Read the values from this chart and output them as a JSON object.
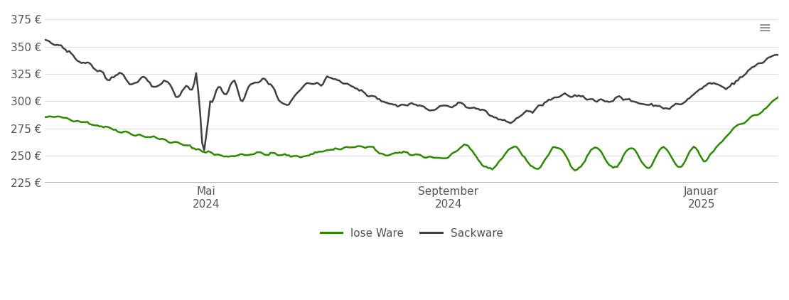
{
  "title": "",
  "ylabel": "",
  "xlabel": "",
  "background_color": "#ffffff",
  "grid_color": "#e0e0e0",
  "ymin": 225,
  "ymax": 383,
  "yticks": [
    225,
    250,
    275,
    300,
    325,
    350,
    375
  ],
  "ytick_labels": [
    "225 €",
    "250 €",
    "275 €",
    "300 €",
    "325 €",
    "350 €",
    "375 €"
  ],
  "xtick_positions": [
    0.22,
    0.55,
    0.895
  ],
  "xtick_labels": [
    "Mai\n2024",
    "September\n2024",
    "Januar\n2025"
  ],
  "line_lose_color": "#2d8a00",
  "line_sack_color": "#404040",
  "line_width": 1.8,
  "legend_items": [
    "lose Ware",
    "Sackware"
  ],
  "figwidth": 11.1,
  "figheight": 4.22,
  "hamburger_icon": "≡"
}
